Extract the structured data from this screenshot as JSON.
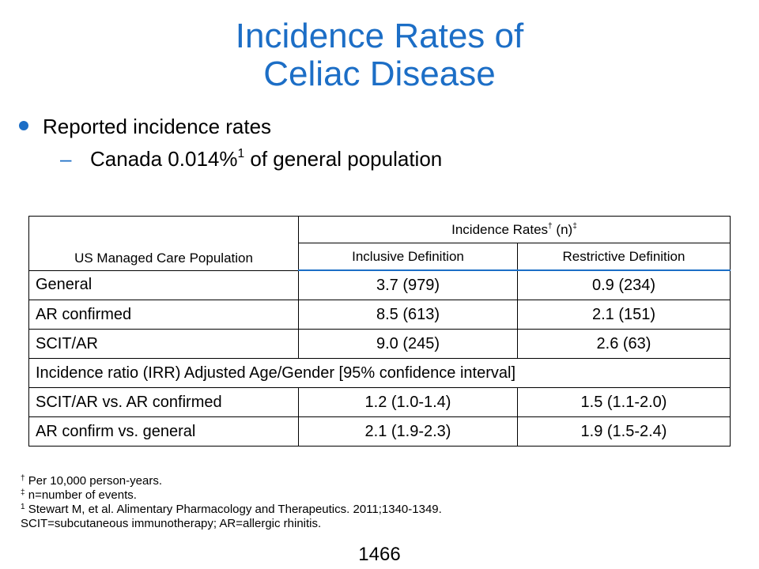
{
  "slide": {
    "title_line1": "Incidence Rates of",
    "title_line2": "Celiac Disease",
    "bullet1": "Reported incidence rates",
    "bullet2_prefix": "Canada 0.014%",
    "bullet2_sup": "1",
    "bullet2_suffix": " of general population",
    "page_number": "1466"
  },
  "table": {
    "population_header": "US Managed Care Population",
    "rates_header": "Incidence Rates",
    "rates_header_sup1": "†",
    "rates_header_mid": " (n)",
    "rates_header_sup2": "‡",
    "inclusive_header": "Inclusive Definition",
    "restrictive_header": "Restrictive Definition",
    "rows": [
      {
        "label": "General",
        "inclusive": "3.7 (979)",
        "restrictive": "0.9 (234)"
      },
      {
        "label": "AR confirmed",
        "inclusive": "8.5 (613)",
        "restrictive": "2.1 (151)"
      },
      {
        "label": "SCIT/AR",
        "inclusive": "9.0 (245)",
        "restrictive": "2.6 (63)"
      }
    ],
    "ratio_header": "Incidence ratio (IRR) Adjusted Age/Gender [95% confidence interval]",
    "ratio_rows": [
      {
        "label": "SCIT/AR vs. AR confirmed",
        "inclusive": "1.2 (1.0-1.4)",
        "restrictive": "1.5 (1.1-2.0)"
      },
      {
        "label": "AR confirm vs. general",
        "inclusive": "2.1 (1.9-2.3)",
        "restrictive": "1.9 (1.5-2.4)"
      }
    ]
  },
  "footnotes": [
    {
      "mark": "†",
      "text": " Per 10,000 person-years."
    },
    {
      "mark": "‡",
      "text": " n=number of events."
    },
    {
      "mark": "1",
      "text": " Stewart M, et al. Alimentary Pharmacology and Therapeutics. 2011;1340-1349."
    },
    {
      "mark": "",
      "text": "SCIT=subcutaneous immunotherapy; AR=allergic rhinitis."
    }
  ],
  "colors": {
    "accent": "#1c6ec6"
  }
}
